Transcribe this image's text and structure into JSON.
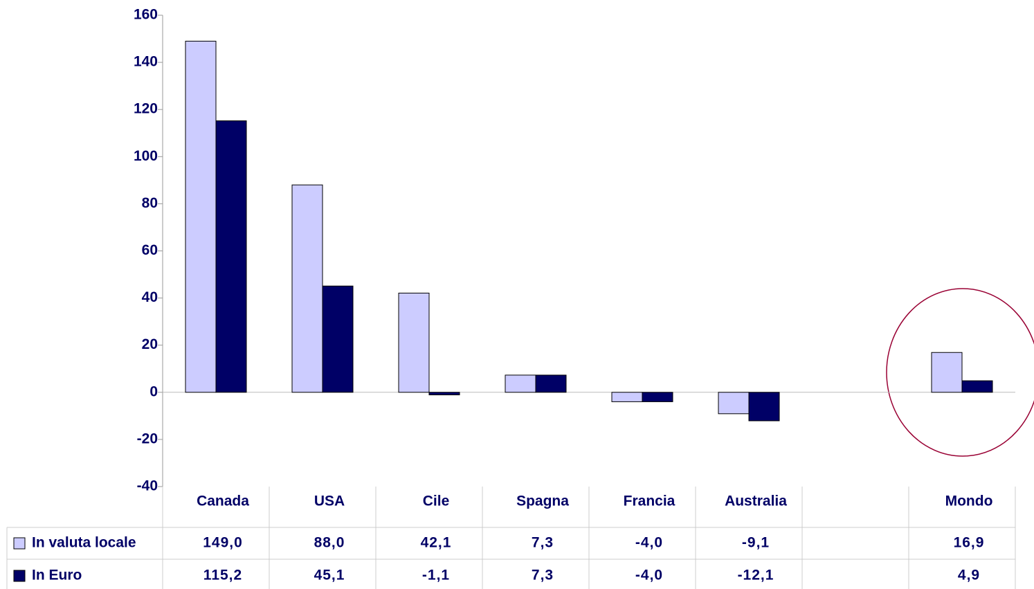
{
  "chart_data": {
    "type": "bar",
    "categories": [
      "Canada",
      "USA",
      "Cile",
      "Spagna",
      "Francia",
      "Australia",
      null,
      "Mondo"
    ],
    "series": [
      {
        "name": "In valuta locale",
        "color": "#ccccff",
        "values": [
          149.0,
          88.0,
          42.1,
          7.3,
          -4.0,
          -9.1,
          null,
          16.9
        ],
        "value_labels": [
          "149,0",
          "88,0",
          "42,1",
          "7,3",
          "-4,0",
          "-9,1",
          null,
          "16,9"
        ]
      },
      {
        "name": "In Euro",
        "color": "#000066",
        "values": [
          115.2,
          45.1,
          -1.1,
          7.3,
          -4.0,
          -12.1,
          null,
          4.9
        ],
        "value_labels": [
          "115,2",
          "45,1",
          "-1,1",
          "7,3",
          "-4,0",
          "-12,1",
          null,
          "4,9"
        ]
      }
    ],
    "ylim": [
      -40,
      160
    ],
    "yticks": [
      -40,
      -20,
      0,
      20,
      40,
      60,
      80,
      100,
      120,
      140,
      160
    ]
  }
}
